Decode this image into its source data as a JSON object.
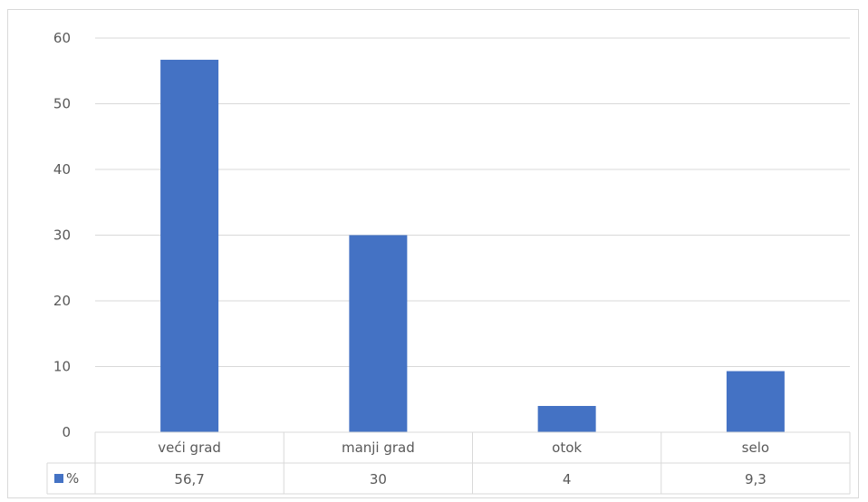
{
  "chart_data": {
    "type": "bar",
    "categories": [
      "veći grad",
      "manji grad",
      "otok",
      "selo"
    ],
    "series": [
      {
        "name": "%",
        "values": [
          56.7,
          30,
          4,
          9.3
        ],
        "value_labels": [
          "56,7",
          "30",
          "4",
          "9,3"
        ],
        "color": "#4472c4"
      }
    ],
    "ylim": [
      0,
      60
    ],
    "yticks": [
      "0",
      "10",
      "20",
      "30",
      "40",
      "50",
      "60"
    ],
    "grid": true,
    "legend": "data-table",
    "gridline_color": "#d9d9d9",
    "text_color": "#595959"
  }
}
